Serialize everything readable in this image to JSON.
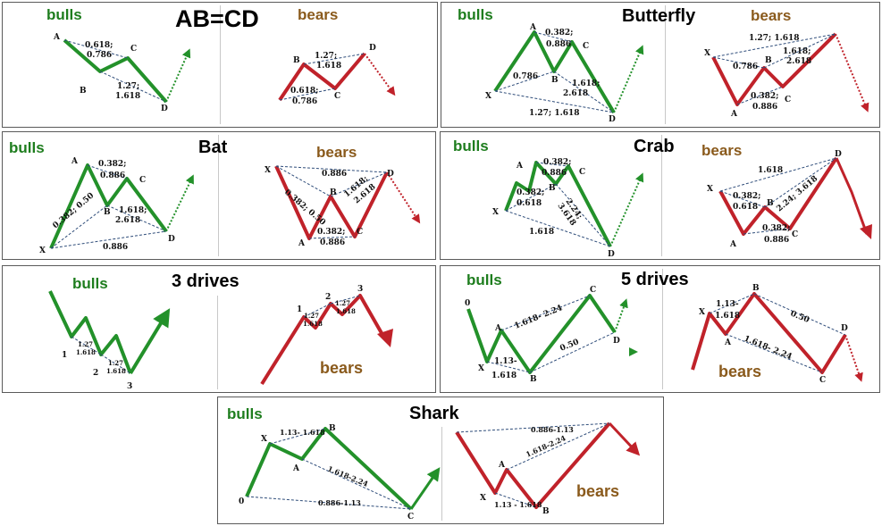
{
  "colors": {
    "bull": "#23912a",
    "bear": "#c0222a",
    "bull_text": "#1e7d1e",
    "bear_text": "#8a5a1c",
    "guide": "#2f4d7a"
  },
  "panels": {
    "abcd": {
      "title": "AB=CD",
      "bulls": "bulls",
      "bears": "bears",
      "bull": {
        "labels": [
          "A",
          "B",
          "C",
          "D"
        ],
        "ratios": [
          "0.618;",
          "0.786",
          "1.27;",
          "1.618"
        ]
      },
      "bear": {
        "labels": [
          "B",
          "C",
          "D"
        ],
        "ratios": [
          "1.27;",
          "1.618",
          "0.618;",
          "0.786"
        ]
      }
    },
    "butterfly": {
      "title": "Butterfly",
      "bulls": "bulls",
      "bears": "bears",
      "bull": {
        "labels": [
          "X",
          "A",
          "B",
          "C",
          "D"
        ],
        "ratios": [
          "0.382;",
          "0.886",
          "0.786",
          "1.618;",
          "2.618",
          "1.27; 1.618"
        ]
      },
      "bear": {
        "labels": [
          "X",
          "A",
          "B",
          "C"
        ],
        "ratios": [
          "1.27; 1.618",
          "0.786",
          "1.618;",
          "2.618",
          "0.382;",
          "0.886"
        ]
      }
    },
    "bat": {
      "title": "Bat",
      "bulls": "bulls",
      "bears": "bears",
      "bull": {
        "labels": [
          "A",
          "B",
          "C",
          "D",
          "X"
        ],
        "ratios": [
          "0.382;",
          "0.886",
          "0.382; 0.50",
          "1.618;",
          "2.618",
          "0.886"
        ]
      },
      "bear": {
        "labels": [
          "X",
          "B",
          "D",
          "A",
          "C"
        ],
        "ratios": [
          "0.886",
          "0.382; 0.50",
          "1.618;",
          "2.618",
          "0.382;",
          "0.886"
        ]
      }
    },
    "crab": {
      "title": "Crab",
      "bulls": "bulls",
      "bears": "bears",
      "bull": {
        "labels": [
          "A",
          "B",
          "C",
          "X",
          "D"
        ],
        "ratios": [
          "0.382;",
          "0.886",
          "0.382;",
          "0.618",
          "2.24;",
          "3.618",
          "1.618"
        ]
      },
      "bear": {
        "labels": [
          "X",
          "B",
          "D",
          "A",
          "C"
        ],
        "ratios": [
          "1.618",
          "0.382;",
          "0.618",
          "2.24; 3.618",
          "0.382;",
          "0.886"
        ]
      }
    },
    "three_drives": {
      "title": "3 drives",
      "bulls": "bulls",
      "bears": "bears",
      "bull": {
        "labels": [
          "1",
          "2",
          "3"
        ],
        "ratios": [
          "1.27",
          "1.618",
          "1.27",
          "1.618"
        ]
      },
      "bear": {
        "labels": [
          "1",
          "2",
          "3"
        ],
        "ratios": [
          "1.27",
          "1.618",
          "1.27",
          "1.618"
        ]
      }
    },
    "five_drives": {
      "title": "5 drives",
      "bulls": "bulls",
      "bears": "bears",
      "bull": {
        "labels": [
          "0",
          "A",
          "X",
          "B",
          "C",
          "D"
        ],
        "ratios": [
          "1.13-",
          "1.618",
          "1.618- 2.24",
          "0.50"
        ]
      },
      "bear": {
        "labels": [
          "X",
          "A",
          "B",
          "C",
          "D"
        ],
        "ratios": [
          "1.13-",
          "1.618",
          "0.50",
          "1.618- 2.24"
        ]
      }
    },
    "shark": {
      "title": "Shark",
      "bulls": "bulls",
      "bears": "bears",
      "bull": {
        "labels": [
          "X",
          "B",
          "A",
          "0",
          "C"
        ],
        "ratios": [
          "1.13- 1.618",
          "1.618-2.24",
          "0.886-1.13"
        ]
      },
      "bear": {
        "labels": [
          "A",
          "X",
          "B"
        ],
        "ratios": [
          "0.886-1.13",
          "1.618-2.24",
          "1.13 - 1.618"
        ]
      }
    }
  }
}
